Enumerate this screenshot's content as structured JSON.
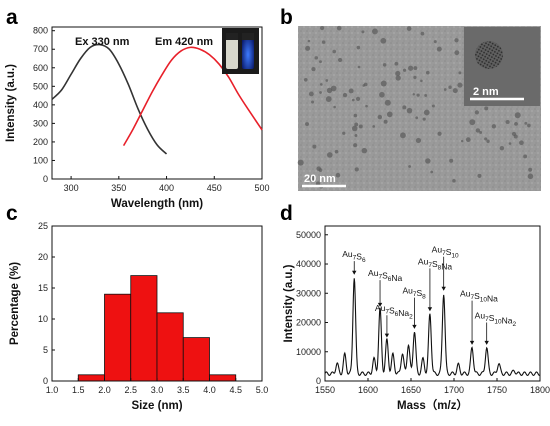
{
  "panels": {
    "a": "a",
    "b": "b",
    "c": "c",
    "d": "d"
  },
  "chart_data": [
    {
      "panel": "a",
      "type": "line",
      "xlabel": "Wavelength (nm)",
      "ylabel": "Intensity (a.u.)",
      "xlim": [
        280,
        500
      ],
      "ylim": [
        0,
        820
      ],
      "xticks": [
        300,
        350,
        400,
        450,
        500
      ],
      "yticks": [
        0,
        100,
        200,
        300,
        400,
        500,
        600,
        700,
        800
      ],
      "grid": false,
      "annotations": [
        "Ex 330 nm",
        "Em 420 nm"
      ],
      "series": [
        {
          "name": "Ex 330 nm",
          "color": "#333333",
          "x": [
            280,
            290,
            300,
            310,
            320,
            330,
            340,
            350,
            360,
            370,
            380,
            390,
            400
          ],
          "y": [
            430,
            480,
            565,
            650,
            710,
            725,
            700,
            620,
            510,
            380,
            270,
            185,
            135
          ]
        },
        {
          "name": "Em 420 nm",
          "color": "#e8202a",
          "x": [
            355,
            365,
            375,
            385,
            395,
            405,
            415,
            425,
            435,
            445,
            455,
            465,
            475,
            485,
            500
          ],
          "y": [
            180,
            270,
            370,
            470,
            560,
            640,
            690,
            710,
            700,
            670,
            620,
            550,
            460,
            380,
            265
          ]
        }
      ]
    },
    {
      "panel": "b",
      "type": "image",
      "scale_bars": [
        "20 nm",
        "2 nm"
      ]
    },
    {
      "panel": "c",
      "type": "bar",
      "xlabel": "Size (nm)",
      "ylabel": "Percentage (%)",
      "xlim": [
        1.0,
        5.0
      ],
      "ylim": [
        0,
        25
      ],
      "xticks": [
        "1.0",
        "1.5",
        "2.0",
        "2.5",
        "3.0",
        "3.5",
        "4.0",
        "4.5",
        "5.0"
      ],
      "yticks": [
        0,
        5,
        10,
        15,
        20,
        25
      ],
      "bar_color": "#ee1111",
      "bins": [
        [
          1.5,
          2.0
        ],
        [
          2.0,
          2.5
        ],
        [
          2.5,
          3.0
        ],
        [
          3.0,
          3.5
        ],
        [
          3.5,
          4.0
        ],
        [
          4.0,
          4.5
        ]
      ],
      "values": [
        1,
        14,
        17,
        11,
        7,
        1
      ]
    },
    {
      "panel": "d",
      "type": "line",
      "xlabel": "Mass（m/z）",
      "ylabel": "Intensity (a.u.)",
      "xlim": [
        1550,
        1800
      ],
      "ylim": [
        0,
        53000
      ],
      "xticks": [
        1550,
        1600,
        1650,
        1700,
        1750,
        1800
      ],
      "yticks": [
        0,
        10000,
        20000,
        30000,
        40000,
        50000
      ],
      "peaks": [
        {
          "x": 1564,
          "y": 6000
        },
        {
          "x": 1573,
          "y": 9000
        },
        {
          "x": 1584,
          "y": 35500
        },
        {
          "x": 1607,
          "y": 7500
        },
        {
          "x": 1614,
          "y": 24500
        },
        {
          "x": 1622,
          "y": 14000
        },
        {
          "x": 1629,
          "y": 9000
        },
        {
          "x": 1640,
          "y": 9500
        },
        {
          "x": 1647,
          "y": 12500
        },
        {
          "x": 1654,
          "y": 17000
        },
        {
          "x": 1664,
          "y": 7500
        },
        {
          "x": 1672,
          "y": 23000
        },
        {
          "x": 1688,
          "y": 30000
        },
        {
          "x": 1705,
          "y": 5500
        },
        {
          "x": 1721,
          "y": 11500
        },
        {
          "x": 1738,
          "y": 11500
        },
        {
          "x": 1752,
          "y": 6000
        },
        {
          "x": 1770,
          "y": 3500
        }
      ],
      "baseline": 2500,
      "labels": [
        {
          "formula": [
            [
              "Au",
              "7"
            ],
            [
              "S",
              "6"
            ]
          ],
          "x": 1584,
          "y": 41000,
          "arrow_to": 36000
        },
        {
          "formula": [
            [
              "Au",
              "7"
            ],
            [
              "S",
              "6"
            ],
            [
              "Na",
              ""
            ]
          ],
          "x": 1614,
          "y": 34500,
          "arrow_to": 25000
        },
        {
          "formula": [
            [
              "Au",
              "7"
            ],
            [
              "S",
              "6"
            ],
            [
              "Na",
              "2"
            ]
          ],
          "x": 1622,
          "y": 22500,
          "arrow_to": 14500
        },
        {
          "formula": [
            [
              "Au",
              "7"
            ],
            [
              "S",
              "8"
            ]
          ],
          "x": 1654,
          "y": 28500,
          "arrow_to": 17500
        },
        {
          "formula": [
            [
              "Au",
              "7"
            ],
            [
              "S",
              "8"
            ],
            [
              "Na",
              ""
            ]
          ],
          "x": 1672,
          "y": 38500,
          "arrow_to": 23500
        },
        {
          "formula": [
            [
              "Au",
              "7"
            ],
            [
              "S",
              "10"
            ]
          ],
          "x": 1688,
          "y": 42500,
          "arrow_to": 30500
        },
        {
          "formula": [
            [
              "Au",
              "7"
            ],
            [
              "S",
              "10"
            ],
            [
              "Na",
              ""
            ]
          ],
          "x": 1721,
          "y": 27500,
          "arrow_to": 12000
        },
        {
          "formula": [
            [
              "Au",
              "7"
            ],
            [
              "S",
              "10"
            ],
            [
              "Na",
              "2"
            ]
          ],
          "x": 1738,
          "y": 20000,
          "arrow_to": 12000
        }
      ]
    }
  ]
}
